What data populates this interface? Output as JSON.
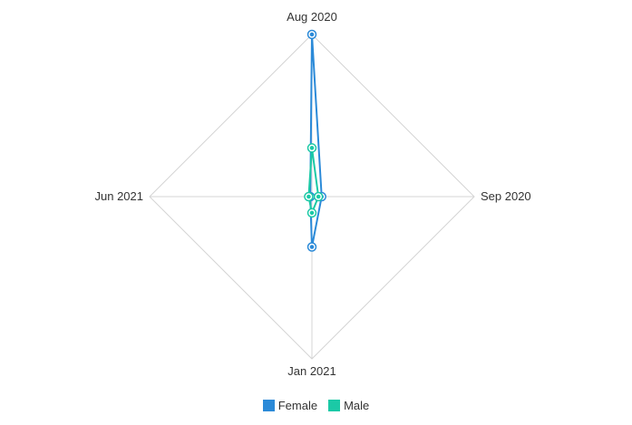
{
  "chart_data": {
    "type": "radar",
    "axes": [
      "Aug 2020",
      "Sep 2020",
      "Jan 2021",
      "Jun 2021"
    ],
    "series": [
      {
        "name": "Female",
        "color": "#2b8ad8",
        "values": [
          100,
          6,
          31,
          1
        ]
      },
      {
        "name": "Male",
        "color": "#1bc9a6",
        "values": [
          30,
          4,
          10,
          2
        ]
      }
    ],
    "range": [
      0,
      100
    ],
    "grid": "polygon",
    "legend_position": "bottom-center"
  }
}
